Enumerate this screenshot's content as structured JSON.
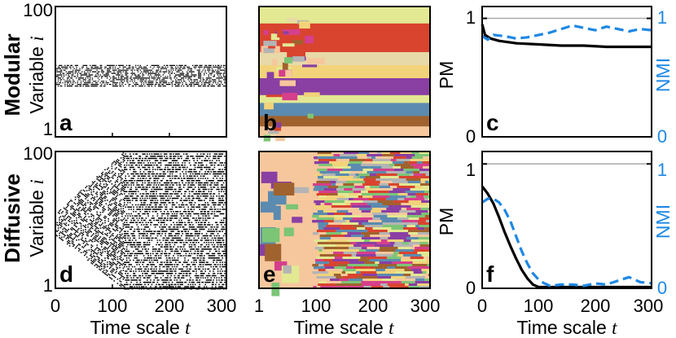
{
  "row_labels": {
    "top": "Modular",
    "bottom": "Diffusive"
  },
  "y_label_left": "Variable",
  "y_label_left_var": "i",
  "x_label": "Time scale",
  "x_label_var": "t",
  "pm_label": "PM",
  "nmi_label": "NMI",
  "panel_letters": {
    "a": "a",
    "b": "b",
    "c": "c",
    "d": "d",
    "e": "e",
    "f": "f"
  },
  "ticks": {
    "var_top": "100",
    "var_bottom": "1",
    "x_col1": [
      "0",
      "100",
      "200",
      "300"
    ],
    "x_col2": [
      "1",
      "100",
      "200",
      "300"
    ],
    "x_col3": [
      "0",
      "100",
      "200",
      "300"
    ],
    "pm": [
      "1",
      "0"
    ],
    "nmi": [
      "1",
      "0"
    ]
  },
  "colors": {
    "pm": "#000000",
    "nmi": "#1e88e5",
    "ref": "#aaaaaa"
  },
  "chart_data": [
    {
      "type": "line",
      "panel": "c",
      "title": "Modular",
      "xlabel": "Time scale t",
      "ylabel": "PM",
      "ylabel_right": "NMI",
      "xlim": [
        0,
        300
      ],
      "ylim": [
        0,
        1.1
      ],
      "reference_line": 1,
      "series": [
        {
          "name": "PM",
          "x": [
            0,
            5,
            15,
            30,
            60,
            100,
            140,
            180,
            220,
            260,
            300
          ],
          "values": [
            0.95,
            0.86,
            0.83,
            0.81,
            0.79,
            0.78,
            0.77,
            0.77,
            0.76,
            0.76,
            0.76
          ]
        },
        {
          "name": "NMI",
          "x": [
            0,
            10,
            20,
            40,
            60,
            80,
            100,
            120,
            140,
            160,
            180,
            200,
            220,
            240,
            260,
            280,
            300
          ],
          "values": [
            0.85,
            0.82,
            0.86,
            0.85,
            0.83,
            0.84,
            0.86,
            0.88,
            0.91,
            0.94,
            0.92,
            0.9,
            0.93,
            0.91,
            0.89,
            0.91,
            0.9
          ]
        }
      ]
    },
    {
      "type": "line",
      "panel": "f",
      "title": "Diffusive",
      "xlabel": "Time scale t",
      "ylabel": "PM",
      "ylabel_right": "NMI",
      "xlim": [
        0,
        300
      ],
      "ylim": [
        0,
        1.1
      ],
      "reference_line": 1,
      "series": [
        {
          "name": "PM",
          "x": [
            0,
            10,
            20,
            30,
            40,
            50,
            60,
            70,
            80,
            90,
            100,
            110,
            150,
            200,
            250,
            300
          ],
          "values": [
            0.82,
            0.76,
            0.68,
            0.57,
            0.45,
            0.34,
            0.24,
            0.15,
            0.08,
            0.03,
            0.01,
            0.01,
            0.01,
            0.01,
            0.01,
            0.01
          ]
        },
        {
          "name": "NMI",
          "x": [
            0,
            10,
            20,
            30,
            40,
            50,
            60,
            70,
            80,
            90,
            100,
            110,
            120,
            140,
            160,
            180,
            200,
            220,
            240,
            260,
            280,
            300
          ],
          "values": [
            0.69,
            0.72,
            0.72,
            0.69,
            0.63,
            0.54,
            0.42,
            0.3,
            0.2,
            0.12,
            0.07,
            0.04,
            0.02,
            0.03,
            0.03,
            0.02,
            0.04,
            0.03,
            0.06,
            0.09,
            0.05,
            0.04
          ]
        }
      ]
    },
    {
      "type": "heatmap",
      "panel": "a",
      "description_text": "Variable i vs time scale t, binary values, modular case",
      "xlim": [
        0,
        300
      ],
      "ylim": [
        1,
        100
      ],
      "active_band": [
        40,
        56
      ]
    },
    {
      "type": "heatmap",
      "panel": "d",
      "xlim": [
        0,
        300
      ],
      "ylim": [
        1,
        100
      ],
      "spread_start": [
        40,
        56
      ],
      "spread_full_at": 120
    },
    {
      "type": "heatmap",
      "panel": "b",
      "xlim": [
        1,
        300
      ],
      "ylim": [
        1,
        100
      ],
      "palette": [
        "#e8d9a8",
        "#d9442f",
        "#8a3fa3",
        "#5b8bb0",
        "#a0622e",
        "#f6c79d",
        "#e3e892",
        "#f2d37a",
        "#d63f8c",
        "#7cc576",
        "#b4b4b4",
        "#c9a2c8"
      ]
    },
    {
      "type": "heatmap",
      "panel": "e",
      "xlim": [
        1,
        300
      ],
      "ylim": [
        1,
        100
      ],
      "palette": [
        "#f6c79d",
        "#d9442f",
        "#8a3fa3",
        "#5b8bb0",
        "#a0622e",
        "#e3e892",
        "#f2d37a",
        "#d63f8c",
        "#7cc576",
        "#b4b4b4"
      ]
    }
  ]
}
